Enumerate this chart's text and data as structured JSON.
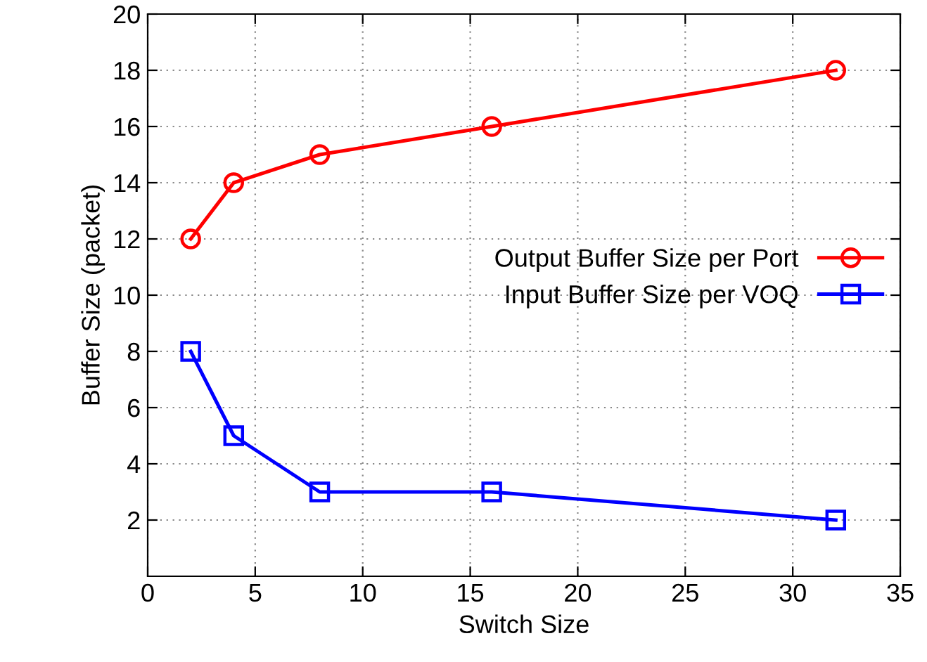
{
  "chart_data": {
    "type": "line",
    "xlabel": "Switch Size",
    "ylabel": "Buffer Size (packet)",
    "series": [
      {
        "name": "Output Buffer Size per Port",
        "color": "#ff0000",
        "marker": "circle",
        "x": [
          2,
          4,
          8,
          16,
          32
        ],
        "values": [
          12,
          14,
          15,
          16,
          18
        ]
      },
      {
        "name": "Input Buffer Size per VOQ",
        "color": "#0000ff",
        "marker": "square",
        "x": [
          2,
          4,
          8,
          16,
          32
        ],
        "values": [
          8,
          5,
          3,
          3,
          2
        ]
      }
    ],
    "xlim": [
      0,
      35
    ],
    "xticks": [
      0,
      5,
      10,
      15,
      20,
      25,
      30,
      35
    ],
    "ylim": [
      0,
      20
    ],
    "yticks": [
      2,
      4,
      6,
      8,
      10,
      12,
      14,
      16,
      18,
      20
    ],
    "grid": true,
    "legend": "right",
    "line_style": "solid"
  }
}
